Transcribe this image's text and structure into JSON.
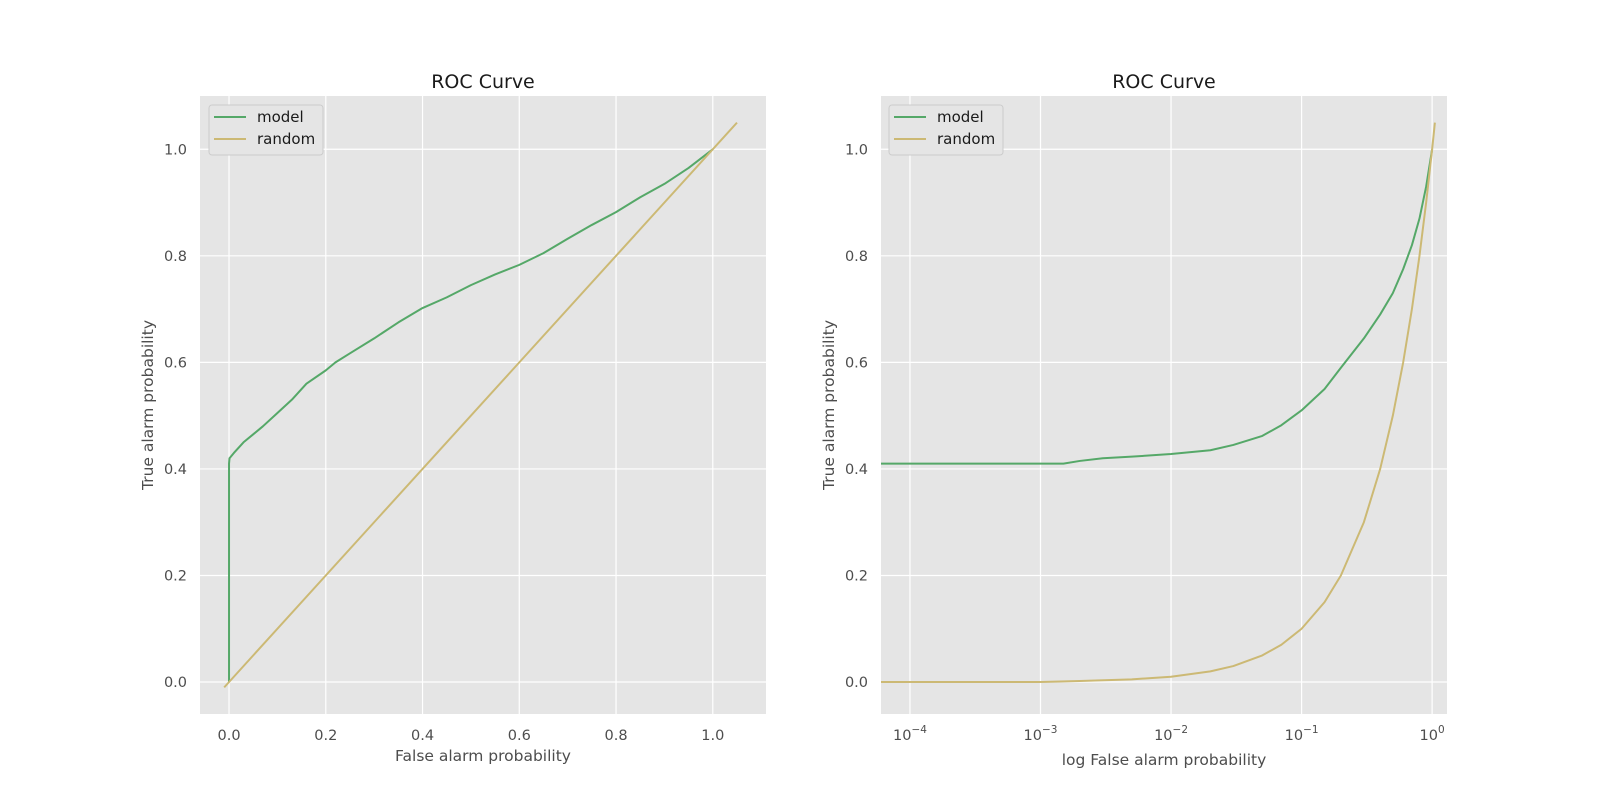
{
  "colors": {
    "model": "#55a868",
    "random": "#ccb974",
    "background": "#e5e5e5",
    "grid": "#ffffff"
  },
  "chart_data": [
    {
      "type": "line",
      "title": "ROC Curve",
      "xlabel": "False alarm probability",
      "ylabel": "True alarm probability",
      "xscale": "linear",
      "xlim": [
        -0.06,
        1.11
      ],
      "ylim": [
        -0.06,
        1.1
      ],
      "xticks": [
        0.0,
        0.2,
        0.4,
        0.6,
        0.8,
        1.0
      ],
      "xtick_labels": [
        "0.0",
        "0.2",
        "0.4",
        "0.6",
        "0.8",
        "1.0"
      ],
      "yticks": [
        0.0,
        0.2,
        0.4,
        0.6,
        0.8,
        1.0
      ],
      "ytick_labels": [
        "0.0",
        "0.2",
        "0.4",
        "0.6",
        "0.8",
        "1.0"
      ],
      "grid": true,
      "legend_position": "top-left",
      "series": [
        {
          "name": "model",
          "color": "#55a868",
          "x": [
            0.0,
            0.0,
            0.001,
            0.01,
            0.03,
            0.05,
            0.07,
            0.1,
            0.13,
            0.16,
            0.2,
            0.22,
            0.25,
            0.3,
            0.35,
            0.4,
            0.45,
            0.5,
            0.55,
            0.6,
            0.65,
            0.7,
            0.75,
            0.8,
            0.85,
            0.9,
            0.95,
            1.0
          ],
          "y": [
            0.0,
            0.41,
            0.42,
            0.43,
            0.45,
            0.465,
            0.48,
            0.505,
            0.53,
            0.56,
            0.585,
            0.6,
            0.617,
            0.645,
            0.675,
            0.702,
            0.722,
            0.745,
            0.765,
            0.783,
            0.805,
            0.832,
            0.858,
            0.882,
            0.91,
            0.935,
            0.965,
            1.0
          ]
        },
        {
          "name": "random",
          "color": "#ccb974",
          "x": [
            -0.01,
            1.05
          ],
          "y": [
            -0.01,
            1.05
          ]
        }
      ]
    },
    {
      "type": "line",
      "title": "ROC Curve",
      "xlabel": "log False alarm probability",
      "ylabel": "True alarm probability",
      "xscale": "log",
      "xlim": [
        6e-05,
        1.3
      ],
      "ylim": [
        -0.06,
        1.1
      ],
      "xticks": [
        0.0001,
        0.001,
        0.01,
        0.1,
        1
      ],
      "xtick_labels": [
        {
          "base": "10",
          "exp": "−4"
        },
        {
          "base": "10",
          "exp": "−3"
        },
        {
          "base": "10",
          "exp": "−2"
        },
        {
          "base": "10",
          "exp": "−1"
        },
        {
          "base": "10",
          "exp": "0"
        }
      ],
      "yticks": [
        0.0,
        0.2,
        0.4,
        0.6,
        0.8,
        1.0
      ],
      "ytick_labels": [
        "0.0",
        "0.2",
        "0.4",
        "0.6",
        "0.8",
        "1.0"
      ],
      "grid": true,
      "legend_position": "top-left",
      "series": [
        {
          "name": "model",
          "color": "#55a868",
          "x": [
            6e-05,
            0.0001,
            0.0003,
            0.001,
            0.0015,
            0.002,
            0.003,
            0.005,
            0.01,
            0.02,
            0.03,
            0.05,
            0.07,
            0.1,
            0.15,
            0.2,
            0.3,
            0.4,
            0.5,
            0.6,
            0.7,
            0.8,
            0.9,
            1.0
          ],
          "y": [
            0.41,
            0.41,
            0.41,
            0.41,
            0.41,
            0.415,
            0.42,
            0.423,
            0.428,
            0.435,
            0.445,
            0.462,
            0.482,
            0.51,
            0.55,
            0.59,
            0.645,
            0.69,
            0.73,
            0.775,
            0.82,
            0.87,
            0.93,
            1.0
          ]
        },
        {
          "name": "random",
          "color": "#ccb974",
          "x": [
            6e-05,
            0.0001,
            0.0003,
            0.001,
            0.002,
            0.005,
            0.01,
            0.02,
            0.03,
            0.05,
            0.07,
            0.1,
            0.15,
            0.2,
            0.3,
            0.4,
            0.5,
            0.6,
            0.7,
            0.8,
            0.9,
            1.0,
            1.05
          ],
          "y": [
            0.0,
            0.0,
            0.0,
            0.0,
            0.002,
            0.005,
            0.01,
            0.02,
            0.03,
            0.05,
            0.07,
            0.1,
            0.15,
            0.2,
            0.3,
            0.4,
            0.5,
            0.6,
            0.7,
            0.8,
            0.9,
            1.0,
            1.05
          ]
        }
      ]
    }
  ]
}
